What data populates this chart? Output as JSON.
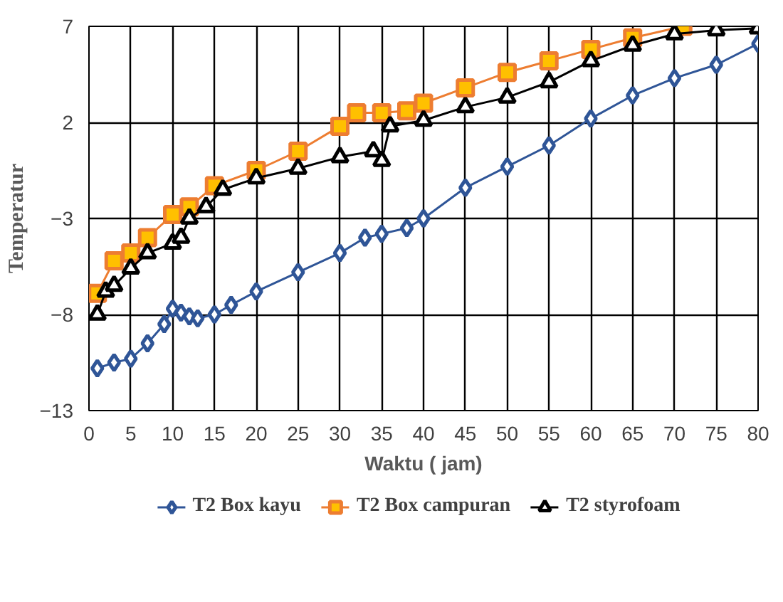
{
  "chart_data": {
    "type": "line",
    "xlabel": "Waktu ( jam)",
    "ylabel": "Temperatur",
    "xlim": [
      0,
      80
    ],
    "xticks": [
      0,
      5,
      10,
      15,
      20,
      25,
      30,
      35,
      40,
      45,
      50,
      55,
      60,
      65,
      70,
      75,
      80
    ],
    "ylim": [
      -13,
      7
    ],
    "yticks": [
      -13,
      -8,
      -3,
      2,
      7
    ],
    "grid": true,
    "legend": "bottom",
    "series": [
      {
        "name": "T2 Box kayu",
        "color": "#2f5597",
        "marker": "diamond",
        "x": [
          1,
          3,
          5,
          7,
          9,
          10,
          11,
          12,
          13,
          15,
          17,
          20,
          25,
          30,
          33,
          35,
          38,
          40,
          45,
          50,
          55,
          60,
          65,
          70,
          75,
          80
        ],
        "values": [
          -10.8,
          -10.5,
          -10.3,
          -9.5,
          -8.5,
          -7.7,
          -7.9,
          -8.1,
          -8.2,
          -8.0,
          -7.5,
          -6.8,
          -5.8,
          -4.8,
          -4.0,
          -3.8,
          -3.5,
          -3.0,
          -1.4,
          -0.3,
          0.8,
          2.2,
          3.4,
          4.3,
          5.0,
          6.1
        ]
      },
      {
        "name": "T2 Box campuran",
        "color": "#ed7d31",
        "marker": "square",
        "x": [
          1,
          3,
          5,
          7,
          10,
          12,
          15,
          20,
          25,
          30,
          32,
          35,
          38,
          40,
          45,
          50,
          55,
          60,
          65,
          71
        ],
        "values": [
          -6.9,
          -5.2,
          -4.8,
          -4.0,
          -2.8,
          -2.4,
          -1.3,
          -0.5,
          0.5,
          1.8,
          2.5,
          2.5,
          2.6,
          3.0,
          3.8,
          4.6,
          5.2,
          5.8,
          6.4,
          7.0
        ]
      },
      {
        "name": "T2 styrofoam",
        "color": "#000000",
        "marker": "triangle",
        "x": [
          1,
          2,
          3,
          5,
          7,
          10,
          11,
          12,
          14,
          16,
          20,
          25,
          30,
          34,
          35,
          36,
          40,
          45,
          50,
          55,
          60,
          65,
          70,
          75,
          80
        ],
        "values": [
          -8.0,
          -6.8,
          -6.5,
          -5.6,
          -4.8,
          -4.3,
          -4.0,
          -3.0,
          -2.4,
          -1.5,
          -0.9,
          -0.4,
          0.2,
          0.5,
          0.0,
          1.8,
          2.1,
          2.8,
          3.3,
          4.1,
          5.2,
          6.0,
          6.6,
          6.8,
          6.9
        ]
      }
    ]
  }
}
